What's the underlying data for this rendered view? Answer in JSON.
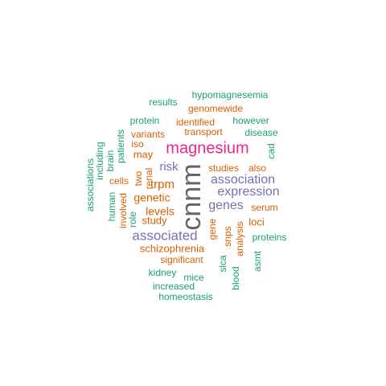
{
  "colors": {
    "teal": "#1b9e77",
    "orange": "#d95f02",
    "purple": "#7570b3",
    "magenta": "#e7298a",
    "gray": "#666666"
  },
  "words": [
    {
      "text": "cnnm",
      "color": "gray"
    },
    {
      "text": "magnesium",
      "color": "magenta"
    },
    {
      "text": "expression",
      "color": "purple"
    },
    {
      "text": "association",
      "color": "purple"
    },
    {
      "text": "associated",
      "color": "purple"
    },
    {
      "text": "genes",
      "color": "purple"
    },
    {
      "text": "risk",
      "color": "purple"
    },
    {
      "text": "trpm",
      "color": "orange"
    },
    {
      "text": "genetic",
      "color": "orange"
    },
    {
      "text": "levels",
      "color": "orange"
    },
    {
      "text": "study",
      "color": "orange"
    },
    {
      "text": "studies",
      "color": "orange"
    },
    {
      "text": "also",
      "color": "orange"
    },
    {
      "text": "serum",
      "color": "orange"
    },
    {
      "text": "loci",
      "color": "orange"
    },
    {
      "text": "schizophrenia",
      "color": "orange"
    },
    {
      "text": "significant",
      "color": "orange"
    },
    {
      "text": "identified",
      "color": "orange"
    },
    {
      "text": "transport",
      "color": "orange"
    },
    {
      "text": "genomewide",
      "color": "orange"
    },
    {
      "text": "variants",
      "color": "orange"
    },
    {
      "text": "iso",
      "color": "orange"
    },
    {
      "text": "may",
      "color": "orange"
    },
    {
      "text": "two",
      "color": "orange"
    },
    {
      "text": "renal",
      "color": "orange"
    },
    {
      "text": "cells",
      "color": "orange"
    },
    {
      "text": "involved",
      "color": "orange"
    },
    {
      "text": "gene",
      "color": "orange"
    },
    {
      "text": "snps",
      "color": "orange"
    },
    {
      "text": "analysis",
      "color": "orange"
    },
    {
      "text": "hypomagnesemia",
      "color": "teal"
    },
    {
      "text": "results",
      "color": "teal"
    },
    {
      "text": "protein",
      "color": "teal"
    },
    {
      "text": "however",
      "color": "teal"
    },
    {
      "text": "disease",
      "color": "teal"
    },
    {
      "text": "cad",
      "color": "teal"
    },
    {
      "text": "patients",
      "color": "teal"
    },
    {
      "text": "brain",
      "color": "teal"
    },
    {
      "text": "including",
      "color": "teal"
    },
    {
      "text": "associations",
      "color": "teal"
    },
    {
      "text": "human",
      "color": "teal"
    },
    {
      "text": "role",
      "color": "teal"
    },
    {
      "text": "proteins",
      "color": "teal"
    },
    {
      "text": "kidney",
      "color": "teal"
    },
    {
      "text": "mice",
      "color": "teal"
    },
    {
      "text": "increased",
      "color": "teal"
    },
    {
      "text": "homeostasis",
      "color": "teal"
    },
    {
      "text": "slca",
      "color": "teal"
    },
    {
      "text": "blood",
      "color": "teal"
    },
    {
      "text": "asmt",
      "color": "teal"
    }
  ]
}
